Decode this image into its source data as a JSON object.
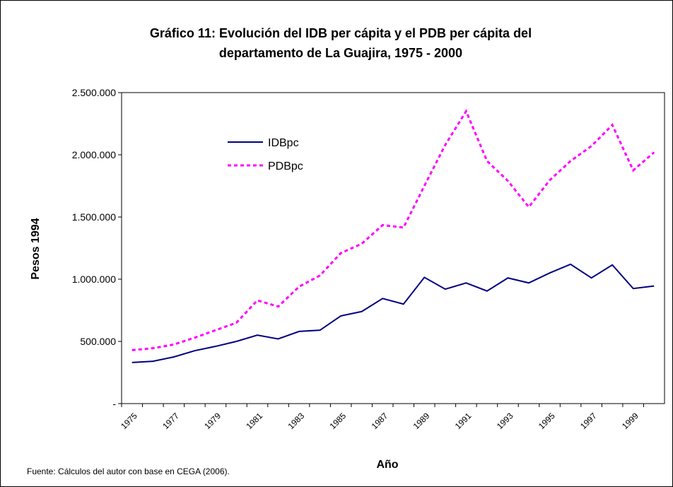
{
  "chart_data": {
    "type": "line",
    "title": [
      "Gráfico 11: Evolución del IDB per cápita y el PDB per cápita del",
      "departamento de La Guajira, 1975 - 2000"
    ],
    "xlabel": "Año",
    "ylabel": "Pesos 1994",
    "note": "Fuente: Cálculos del autor con base en CEGA (2006).",
    "categories": [
      "1975",
      null,
      "1977",
      null,
      "1979",
      null,
      "1981",
      null,
      "1983",
      null,
      "1985",
      null,
      "1987",
      null,
      "1989",
      null,
      "1991",
      null,
      "1993",
      null,
      "1995",
      null,
      "1997",
      null,
      "1999",
      null
    ],
    "series": [
      {
        "name": "IDBpc",
        "color": "#000080",
        "style": "solid",
        "values": [
          330000,
          340000,
          375000,
          425000,
          460000,
          500000,
          550000,
          520000,
          580000,
          590000,
          705000,
          740000,
          845000,
          800000,
          1015000,
          920000,
          970000,
          905000,
          1010000,
          970000,
          1050000,
          1120000,
          1010000,
          1115000,
          925000,
          945000
        ]
      },
      {
        "name": "PDBpc",
        "color": "#ff00ff",
        "style": "dashed",
        "values": [
          430000,
          445000,
          475000,
          530000,
          590000,
          650000,
          830000,
          780000,
          940000,
          1030000,
          1210000,
          1285000,
          1435000,
          1415000,
          1750000,
          2080000,
          2350000,
          1950000,
          1790000,
          1580000,
          1795000,
          1950000,
          2070000,
          2240000,
          1875000,
          2020000
        ]
      }
    ],
    "ylim": [
      0,
      2500000
    ],
    "yticks": [
      {
        "value": 0,
        "label": "-"
      },
      {
        "value": 500000,
        "label": "500.000"
      },
      {
        "value": 1000000,
        "label": "1.000.000"
      },
      {
        "value": 1500000,
        "label": "1.500.000"
      },
      {
        "value": 2000000,
        "label": "2.000.000"
      },
      {
        "value": 2500000,
        "label": "2.500.000"
      }
    ],
    "grid": false,
    "legend": "upper left"
  }
}
